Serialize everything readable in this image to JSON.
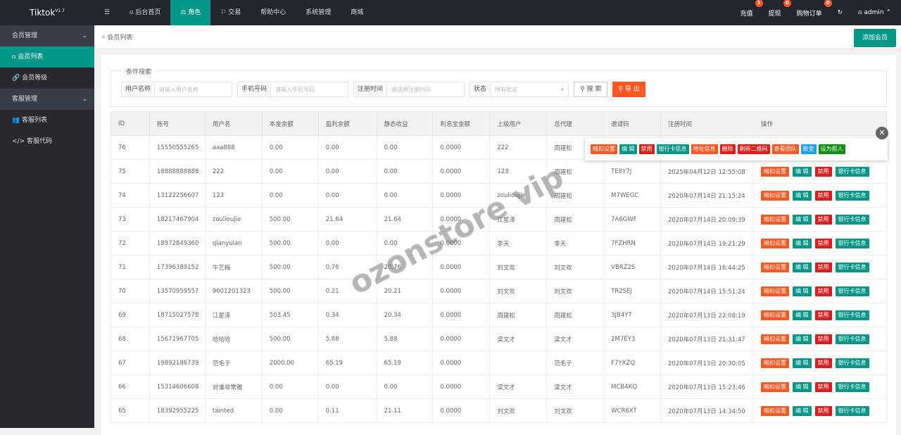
{
  "app": {
    "name": "Tiktok",
    "version": "V1.7"
  },
  "nav": [
    {
      "label": "☰"
    },
    {
      "label": "后台首页"
    },
    {
      "label": "角色"
    },
    {
      "label": "交易"
    },
    {
      "label": "帮助中心"
    },
    {
      "label": "系统管理"
    },
    {
      "label": "商城"
    }
  ],
  "topright": {
    "recharge": "充值",
    "recharge_badge": "1",
    "withdraw": "提现",
    "withdraw_badge": "0",
    "orders": "购物订单",
    "orders_badge": "0",
    "user": "admin"
  },
  "sidebar": {
    "group1": "会员管理",
    "item1": "会员列表",
    "item2": "会员等级",
    "group2": "客服管理",
    "item3": "客服列表",
    "item4": "客服代码"
  },
  "breadcrumb": "会员列表",
  "add_button": "添加会员",
  "search": {
    "legend": "条件搜索",
    "username_label": "用户名称",
    "username_ph": "请输入用户名称",
    "phone_label": "手机号码",
    "phone_ph": "请输入手机号码",
    "time_label": "注册时间",
    "time_ph": "请选择注册时间",
    "status_label": "状态",
    "status_value": "所有状态",
    "search_btn": "搜 索",
    "export_btn": "导 出"
  },
  "columns": [
    "ID",
    "账号",
    "用户名",
    "本金余额",
    "盈利余额",
    "静态收益",
    "利息宝金额",
    "上级用户",
    "总代理",
    "邀请码",
    "注册时间",
    "操作"
  ],
  "rows": [
    [
      "76",
      "15550555265",
      "aaa888",
      "0.00",
      "0.00",
      "0.00",
      "0.0000",
      "222",
      "周建松",
      "",
      ""
    ],
    [
      "75",
      "18888888888",
      "222",
      "0.00",
      "0.00",
      "0.00",
      "0.0000",
      "123",
      "周建松",
      "TE8Y7J",
      "2025年04月12日 12:55:08"
    ],
    [
      "74",
      "13122256607",
      "123",
      "0.00",
      "0.00",
      "0.00",
      "0.0000",
      "zoulioujie",
      "周建松",
      "M7WEGC",
      "2020年07月14日 21:15:24"
    ],
    [
      "73",
      "18217467904",
      "zoulioujie",
      "500.00",
      "21.64",
      "21.64",
      "0.0000",
      "江星泽",
      "周建松",
      "7A6GWF",
      "2020年07月14日 20:09:39"
    ],
    [
      "72",
      "18972849360",
      "qianyulan",
      "500.00",
      "0.00",
      "0.00",
      "0.0000",
      "李天",
      "李天",
      "7FZHRN",
      "2020年07月14日 19:21:29"
    ],
    [
      "71",
      "17396389152",
      "牛艺梅",
      "500.00",
      "0.76",
      "20.76",
      "0.0000",
      "刘文欢",
      "刘文欢",
      "VBRZ2S",
      "2020年07月14日 16:44:25"
    ],
    [
      "70",
      "13570959557",
      "9601201323",
      "500.00",
      "0.21",
      "20.21",
      "0.0000",
      "刘文欢",
      "刘文欢",
      "TR2SEJ",
      "2020年07月14日 15:51:24"
    ],
    [
      "69",
      "18715027578",
      "江星泽",
      "503.45",
      "0.34",
      "20.34",
      "0.0000",
      "周建松",
      "周建松",
      "3JB4YT",
      "2020年07月13日 22:08:19"
    ],
    [
      "68",
      "15671967705",
      "哈哈哈",
      "500.00",
      "5.88",
      "5.88",
      "0.0000",
      "梁文才",
      "梁文才",
      "2M7EY3",
      "2020年07月13日 21:31:47"
    ],
    [
      "67",
      "19892186739",
      "范毛子",
      "2000.00",
      "65.19",
      "65.19",
      "0.0000",
      "",
      "范毛子",
      "F7YXZQ",
      "2020年07月13日 20:30:05"
    ],
    [
      "66",
      "15314606608",
      "对谁非常雅",
      "0.00",
      "0.00",
      "0.00",
      "0.0000",
      "梁文才",
      "梁文才",
      "MCB4KQ",
      "2020年07月13日 15:23:46"
    ],
    [
      "65",
      "18392955225",
      "tainted",
      "0.00",
      "0.11",
      "21.11",
      "0.0000",
      "刘文欢",
      "刘文欢",
      "WCR6XT",
      "2020年07月13日 14:34:50"
    ]
  ],
  "row_actions": [
    "暗扣设置",
    "编 辑",
    "禁用",
    "银行卡信息"
  ],
  "popup_actions": [
    "暗扣设置",
    "编 辑",
    "禁用",
    "银行卡信息",
    "地址信息",
    "删除",
    "刷新二维码",
    "查看团队",
    "账变",
    "设为假人"
  ],
  "watermark": "ozonstore vip",
  "colors": {
    "primary": "#009688",
    "orange": "#ff5722",
    "red": "#e01b1b",
    "blue": "#1e9fff",
    "green": "#109010"
  }
}
